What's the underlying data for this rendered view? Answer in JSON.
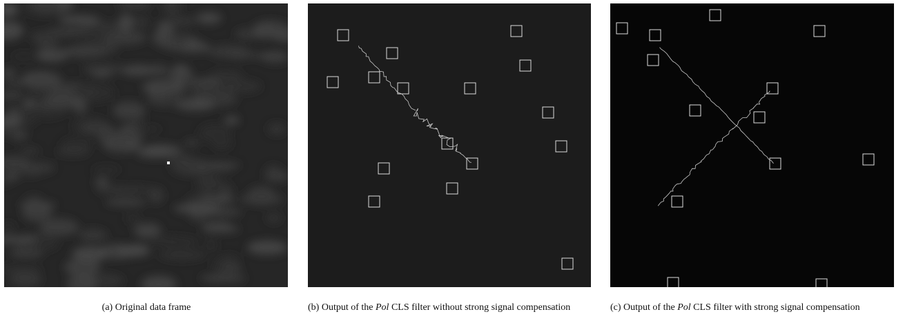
{
  "subfigures": [
    {
      "label": "(a)",
      "caption": "Original data frame"
    },
    {
      "label": "(b)",
      "caption_parts": [
        "Output of the",
        "Pol",
        "CLS filter without strong signal compensation"
      ]
    },
    {
      "label": "(c)",
      "caption_parts": [
        "Output of the",
        "Pol",
        "CLS filter with strong signal compensation"
      ]
    }
  ]
}
